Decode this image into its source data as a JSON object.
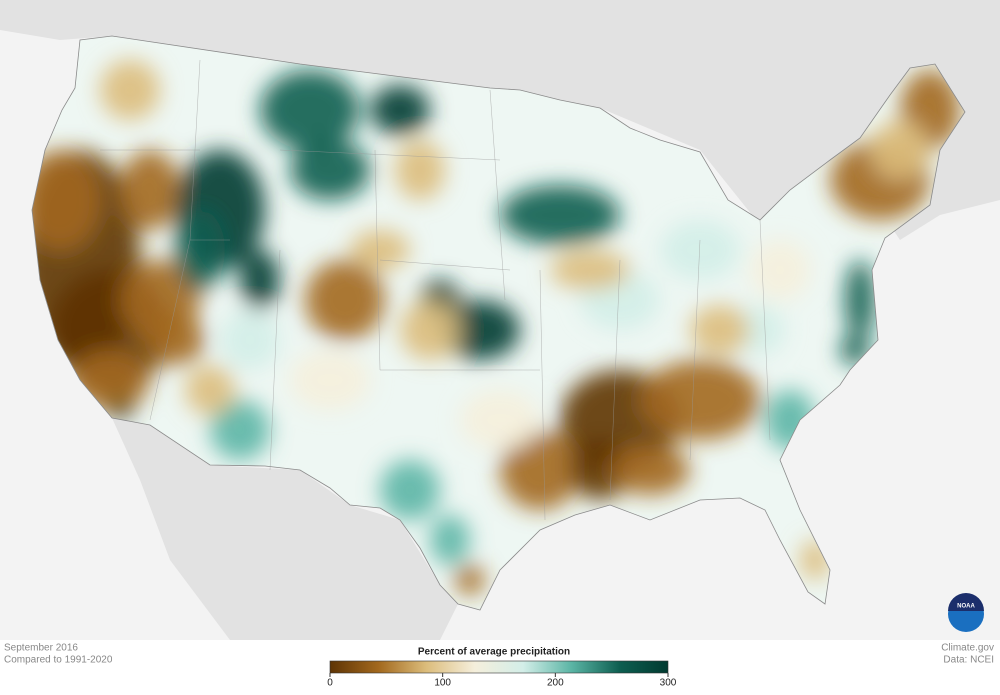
{
  "footer": {
    "date": "September 2016",
    "baseline": "Compared to 1991-2020",
    "credit": "Climate.gov",
    "source": "Data: NCEI"
  },
  "logo": "NOAA",
  "legend": {
    "title": "Percent of average precipitation",
    "range": [
      0,
      300
    ],
    "ticks": [
      0,
      100,
      200,
      300
    ],
    "colors": [
      "#5e3405",
      "#a2681d",
      "#dcbd7c",
      "#f5efdc",
      "#d3eee8",
      "#5bb5a5",
      "#0d5e50",
      "#013a30"
    ]
  }
}
